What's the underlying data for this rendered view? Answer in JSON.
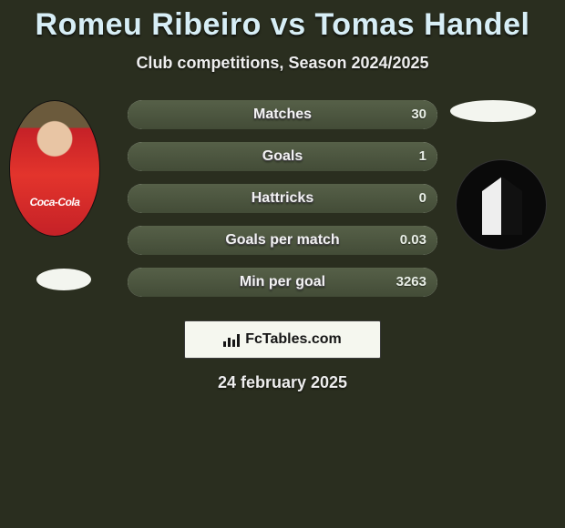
{
  "header": {
    "title": "Romeu Ribeiro vs Tomas Handel",
    "subtitle": "Club competitions, Season 2024/2025",
    "title_color": "#d7eef6"
  },
  "left_player": {
    "sponsor": "Coca-Cola"
  },
  "stats": {
    "rows": [
      {
        "label": "Matches",
        "left": "",
        "right": "30",
        "left_pct": 0,
        "right_pct": 100
      },
      {
        "label": "Goals",
        "left": "",
        "right": "1",
        "left_pct": 0,
        "right_pct": 100
      },
      {
        "label": "Hattricks",
        "left": "",
        "right": "0",
        "left_pct": 0,
        "right_pct": 100
      },
      {
        "label": "Goals per match",
        "left": "",
        "right": "0.03",
        "left_pct": 0,
        "right_pct": 100
      },
      {
        "label": "Min per goal",
        "left": "",
        "right": "3263",
        "left_pct": 0,
        "right_pct": 100
      }
    ],
    "bar_bg": "#e2e9df",
    "fill_color": "#4c5640",
    "label_color": "#f2f2f2"
  },
  "branding": {
    "text": "FcTables.com"
  },
  "footer": {
    "date": "24 february 2025"
  }
}
